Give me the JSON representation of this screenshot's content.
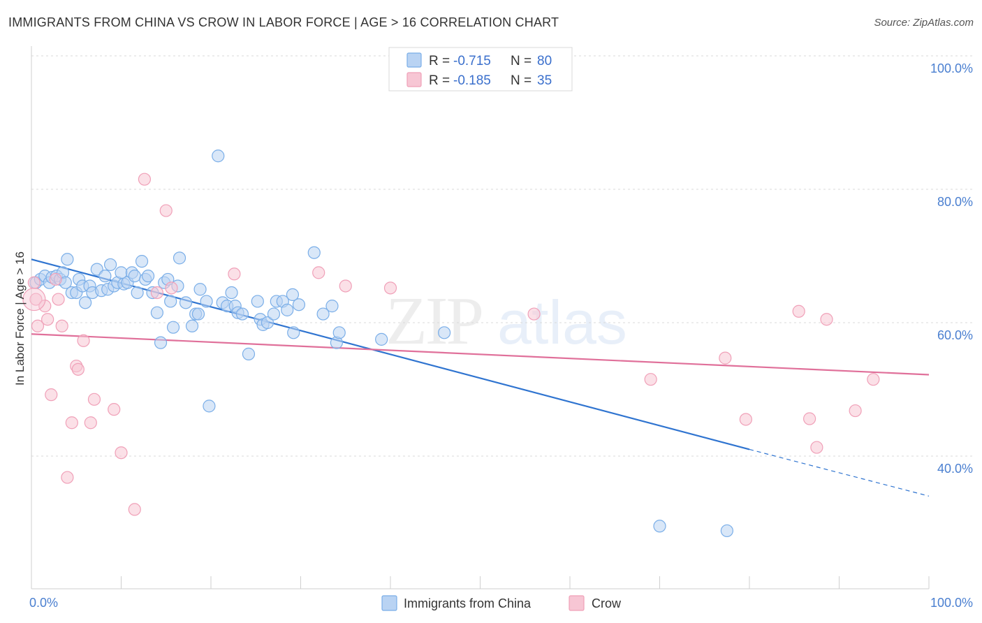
{
  "header": {
    "title": "IMMIGRANTS FROM CHINA VS CROW IN LABOR FORCE | AGE > 16 CORRELATION CHART",
    "source": "Source: ZipAtlas.com"
  },
  "watermark": {
    "zip": "ZIP",
    "atlas": "atlas"
  },
  "legend": {
    "rows": [
      {
        "r_label": "R = ",
        "r_value": "-0.715",
        "n_label": "N = ",
        "n_value": "80"
      },
      {
        "r_label": "R = ",
        "r_value": "-0.185",
        "n_label": "N = ",
        "n_value": "35"
      }
    ]
  },
  "chart_data": {
    "type": "scatter",
    "ylabel": "In Labor Force | Age > 16",
    "xlim": [
      0,
      100
    ],
    "ylim": [
      20,
      102
    ],
    "x_tick_labels": [
      "0.0%",
      "100.0%"
    ],
    "y_ticks": [
      40,
      60,
      80,
      100
    ],
    "y_tick_labels": [
      "40.0%",
      "60.0%",
      "80.0%",
      "100.0%"
    ],
    "grid": true,
    "legend_position": "top-center",
    "series": [
      {
        "name": "Immigrants from China",
        "color": "#7aaee8",
        "fill": "#b9d3f3",
        "line_color": "#2f74d0",
        "trend": {
          "x0": 0,
          "y0": 69.5,
          "x1": 80,
          "y1": 41.0,
          "dash_to_x": 100,
          "dash_to_y": 34.0
        },
        "points": [
          [
            0.5,
            66
          ],
          [
            1,
            66.5
          ],
          [
            1.5,
            67
          ],
          [
            2,
            66
          ],
          [
            2.3,
            66.8
          ],
          [
            2.8,
            67
          ],
          [
            3.2,
            66.5
          ],
          [
            3.5,
            67.5
          ],
          [
            3.8,
            66
          ],
          [
            4,
            69.5
          ],
          [
            4.5,
            64.5
          ],
          [
            5,
            64.5
          ],
          [
            5.3,
            66.5
          ],
          [
            5.7,
            65.5
          ],
          [
            6,
            63
          ],
          [
            6.5,
            65.5
          ],
          [
            6.8,
            64.5
          ],
          [
            7.3,
            68
          ],
          [
            7.8,
            64.8
          ],
          [
            8.2,
            67
          ],
          [
            8.5,
            65
          ],
          [
            8.8,
            68.7
          ],
          [
            9.2,
            65.5
          ],
          [
            9.6,
            66
          ],
          [
            10,
            67.5
          ],
          [
            10.3,
            65.8
          ],
          [
            10.7,
            66
          ],
          [
            11.2,
            67.5
          ],
          [
            11.5,
            67
          ],
          [
            11.8,
            64.5
          ],
          [
            12.3,
            69.2
          ],
          [
            12.7,
            66.5
          ],
          [
            13,
            67
          ],
          [
            13.5,
            64.5
          ],
          [
            14,
            61.5
          ],
          [
            14.4,
            57
          ],
          [
            14.8,
            66
          ],
          [
            15.2,
            66.5
          ],
          [
            15.5,
            63.2
          ],
          [
            15.8,
            59.3
          ],
          [
            16.3,
            65.5
          ],
          [
            16.5,
            69.7
          ],
          [
            17.2,
            63
          ],
          [
            17.9,
            59.5
          ],
          [
            18.3,
            61.3
          ],
          [
            18.6,
            61.3
          ],
          [
            18.8,
            65
          ],
          [
            19.5,
            63.2
          ],
          [
            19.8,
            47.5
          ],
          [
            20.8,
            85
          ],
          [
            21.3,
            63
          ],
          [
            21.8,
            62.5
          ],
          [
            22.3,
            64.5
          ],
          [
            22.7,
            62.5
          ],
          [
            23,
            61.5
          ],
          [
            23.5,
            61.3
          ],
          [
            24.2,
            55.3
          ],
          [
            25.2,
            63.2
          ],
          [
            25.5,
            60.5
          ],
          [
            25.8,
            59.7
          ],
          [
            26.3,
            60
          ],
          [
            27,
            61.3
          ],
          [
            27.3,
            63.2
          ],
          [
            28,
            63.2
          ],
          [
            28.5,
            61.9
          ],
          [
            29.1,
            64.2
          ],
          [
            29.2,
            58.5
          ],
          [
            29.8,
            62.7
          ],
          [
            31.5,
            70.5
          ],
          [
            32.5,
            61.3
          ],
          [
            33.5,
            62.5
          ],
          [
            34,
            57
          ],
          [
            34.3,
            58.5
          ],
          [
            39,
            57.5
          ],
          [
            46,
            58.5
          ],
          [
            70,
            29.5
          ],
          [
            77.5,
            28.8
          ]
        ]
      },
      {
        "name": "Crow",
        "color": "#f0a0b8",
        "fill": "#f7c6d4",
        "line_color": "#e0709a",
        "trend": {
          "x0": 0,
          "y0": 58.3,
          "x1": 100,
          "y1": 52.2
        },
        "points": [
          [
            0.3,
            66
          ],
          [
            0.5,
            63.5
          ],
          [
            0.7,
            59.5
          ],
          [
            1.5,
            62.5
          ],
          [
            1.8,
            60.5
          ],
          [
            2.2,
            49.2
          ],
          [
            2.7,
            66.5
          ],
          [
            3,
            63.5
          ],
          [
            3.4,
            59.5
          ],
          [
            4,
            36.8
          ],
          [
            4.5,
            45
          ],
          [
            5,
            53.5
          ],
          [
            5.2,
            53
          ],
          [
            5.8,
            57.3
          ],
          [
            6.6,
            45
          ],
          [
            7,
            48.5
          ],
          [
            9.2,
            47
          ],
          [
            10,
            40.5
          ],
          [
            11.5,
            32
          ],
          [
            12.6,
            81.5
          ],
          [
            14,
            64.5
          ],
          [
            15,
            76.8
          ],
          [
            15.6,
            65.2
          ],
          [
            22.6,
            67.3
          ],
          [
            32,
            67.5
          ],
          [
            35,
            65.5
          ],
          [
            40,
            65.2
          ],
          [
            56,
            61.3
          ],
          [
            69,
            51.5
          ],
          [
            77.3,
            54.7
          ],
          [
            79.6,
            45.5
          ],
          [
            85.5,
            61.7
          ],
          [
            86.7,
            45.6
          ],
          [
            87.5,
            41.3
          ],
          [
            88.6,
            60.5
          ],
          [
            91.8,
            46.8
          ],
          [
            93.8,
            51.5
          ]
        ]
      }
    ]
  }
}
